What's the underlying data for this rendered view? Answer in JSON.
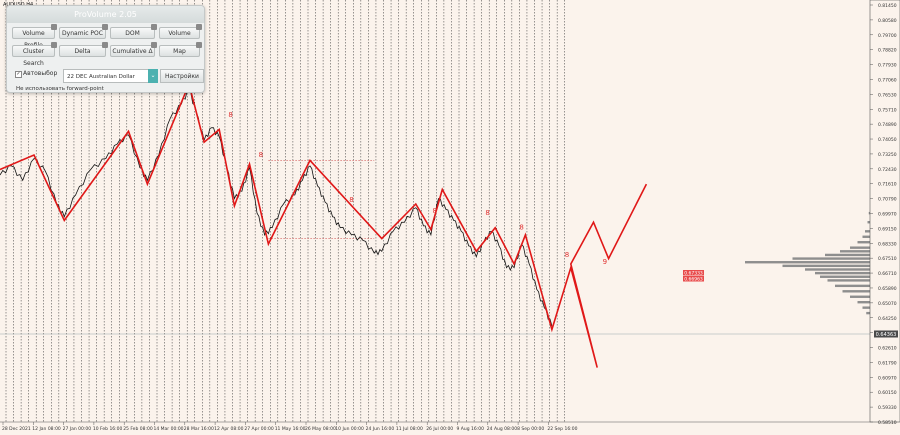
{
  "symbol_label": "AUDUSD,H4",
  "panel": {
    "title": "ProVolume 2.05",
    "buttons": [
      {
        "label": "Volume Profile",
        "active": true
      },
      {
        "label": "Dynamic POC",
        "active": false
      },
      {
        "label": "DOM",
        "active": false
      },
      {
        "label": "Volume",
        "active": false
      },
      {
        "label": "Cluster Search",
        "active": false
      },
      {
        "label": "Delta",
        "active": false
      },
      {
        "label": "Cumulative Δ",
        "active": false
      },
      {
        "label": "Map",
        "active": false
      }
    ],
    "auto_label": "Автовыбор",
    "auto_checked": true,
    "instrument": "22 DEC Australian Dollar",
    "settings_label": "Настройки",
    "forward_point": "Не использовать forward-point"
  },
  "chart_data": {
    "type": "line",
    "price_axis": [
      "0.81450",
      "0.80580",
      "0.79700",
      "0.78820",
      "0.77930",
      "0.77060",
      "0.76530",
      "0.75710",
      "0.74890",
      "0.74050",
      "0.73250",
      "0.72430",
      "0.71610",
      "0.70790",
      "0.69970",
      "0.69150",
      "0.68330",
      "0.67510",
      "0.66710",
      "0.65890",
      "0.65070",
      "0.64250",
      "0.63430",
      "0.62610",
      "0.61790",
      "0.60970",
      "0.60150",
      "0.59330",
      "0.58510"
    ],
    "time_axis": [
      "28 Dec 2021",
      "12 Jan 08:00",
      "27 Jan 00:00",
      "10 Feb 16:00",
      "25 Feb 08:00",
      "14 Mar 00:00",
      "28 Mar 16:00",
      "12 Apr 08:00",
      "27 Apr 00:00",
      "11 May 16:00",
      "26 May 08:00",
      "10 Jun 00:00",
      "24 Jun 16:00",
      "11 Jul 08:00",
      "26 Jul 00:00",
      "9 Aug 16:00",
      "24 Aug 08:00",
      "8 Sep 00:00",
      "22 Sep 16:00"
    ],
    "current_price": "0.64363",
    "level_labels": [
      "0.67333",
      "0.66963"
    ],
    "wave_labels": [
      "8",
      "8",
      "8",
      "8",
      "8",
      "8",
      "8",
      "9"
    ],
    "zigzag": [
      [
        0.724,
        0
      ],
      [
        0.732,
        9
      ],
      [
        0.696,
        17
      ],
      [
        0.745,
        34
      ],
      [
        0.716,
        39
      ],
      [
        0.771,
        50
      ],
      [
        0.739,
        54
      ],
      [
        0.746,
        58
      ],
      [
        0.704,
        62
      ],
      [
        0.727,
        66
      ],
      [
        0.683,
        71
      ],
      [
        0.729,
        82
      ],
      [
        0.686,
        101
      ],
      [
        0.705,
        110
      ],
      [
        0.691,
        114
      ],
      [
        0.713,
        117
      ],
      [
        0.679,
        126
      ],
      [
        0.692,
        131
      ],
      [
        0.672,
        136
      ],
      [
        0.688,
        139
      ],
      [
        0.636,
        146
      ],
      [
        0.67,
        151
      ],
      [
        0.615,
        158
      ],
      [
        0.672,
        151
      ],
      [
        0.695,
        157
      ],
      [
        0.675,
        161
      ],
      [
        0.716,
        171
      ]
    ],
    "price": [
      [
        0,
        0.721
      ],
      [
        3,
        0.726
      ],
      [
        6,
        0.718
      ],
      [
        9,
        0.73
      ],
      [
        12,
        0.723
      ],
      [
        15,
        0.705
      ],
      [
        17,
        0.698
      ],
      [
        20,
        0.71
      ],
      [
        24,
        0.724
      ],
      [
        28,
        0.73
      ],
      [
        31,
        0.738
      ],
      [
        34,
        0.743
      ],
      [
        37,
        0.725
      ],
      [
        39,
        0.718
      ],
      [
        42,
        0.732
      ],
      [
        45,
        0.752
      ],
      [
        48,
        0.76
      ],
      [
        50,
        0.768
      ],
      [
        52,
        0.755
      ],
      [
        54,
        0.74
      ],
      [
        56,
        0.747
      ],
      [
        58,
        0.742
      ],
      [
        60,
        0.725
      ],
      [
        62,
        0.708
      ],
      [
        64,
        0.712
      ],
      [
        66,
        0.725
      ],
      [
        68,
        0.7
      ],
      [
        70,
        0.688
      ],
      [
        72,
        0.692
      ],
      [
        75,
        0.705
      ],
      [
        78,
        0.71
      ],
      [
        80,
        0.718
      ],
      [
        82,
        0.726
      ],
      [
        84,
        0.715
      ],
      [
        86,
        0.706
      ],
      [
        88,
        0.698
      ],
      [
        90,
        0.692
      ],
      [
        93,
        0.688
      ],
      [
        96,
        0.685
      ],
      [
        99,
        0.678
      ],
      [
        101,
        0.679
      ],
      [
        104,
        0.69
      ],
      [
        107,
        0.695
      ],
      [
        110,
        0.703
      ],
      [
        112,
        0.693
      ],
      [
        114,
        0.688
      ],
      [
        116,
        0.708
      ],
      [
        118,
        0.702
      ],
      [
        120,
        0.696
      ],
      [
        122,
        0.69
      ],
      [
        124,
        0.682
      ],
      [
        126,
        0.676
      ],
      [
        128,
        0.684
      ],
      [
        130,
        0.69
      ],
      [
        132,
        0.682
      ],
      [
        134,
        0.67
      ],
      [
        136,
        0.67
      ],
      [
        138,
        0.683
      ],
      [
        140,
        0.672
      ],
      [
        142,
        0.658
      ],
      [
        144,
        0.648
      ],
      [
        146,
        0.638
      ]
    ],
    "volume_profile": [
      [
        0.7,
        1
      ],
      [
        0.695,
        2
      ],
      [
        0.69,
        4
      ],
      [
        0.687,
        6
      ],
      [
        0.684,
        10
      ],
      [
        0.681,
        16
      ],
      [
        0.679,
        24
      ],
      [
        0.677,
        36
      ],
      [
        0.675,
        62
      ],
      [
        0.673,
        100
      ],
      [
        0.671,
        70
      ],
      [
        0.669,
        52
      ],
      [
        0.667,
        44
      ],
      [
        0.665,
        40
      ],
      [
        0.663,
        34
      ],
      [
        0.66,
        28
      ],
      [
        0.657,
        22
      ],
      [
        0.654,
        16
      ],
      [
        0.651,
        10
      ],
      [
        0.648,
        6
      ],
      [
        0.645,
        3
      ]
    ]
  }
}
